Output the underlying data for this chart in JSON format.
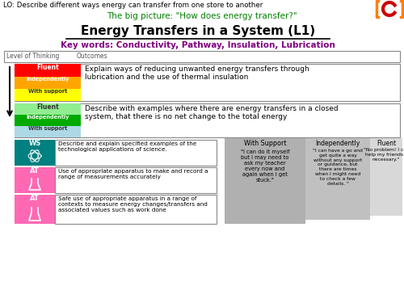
{
  "lo_text": "LO: Describe different ways energy can transfer from one store to another",
  "big_picture": "The big picture: \"How does energy transfer?\"",
  "title": "Energy Transfers in a System (L1)",
  "key_words": "Key words: Conductivity, Pathway, Insulation, Lubrication",
  "lo_color": "#000000",
  "big_picture_color": "#008000",
  "title_color": "#000000",
  "key_words_color": "#800080",
  "bg_color": "#ffffff",
  "outcome1_text": "Explain ways of reducing unwanted energy transfers through\nlubrication and the use of thermal insulation",
  "outcome2_text": "Describe with examples where there are energy transfers in a closed\nsystem, that there is no net change to the total energy",
  "ws_text": "Describe and explain specified examples of the\ntechnological applications of science.",
  "at1_text": "Use of appropriate apparatus to make and record a\nrange of measurements accurately",
  "at2_text": "Safe use of appropriate apparatus in a range of\ncontexts to measure energy changes/transfers and\nassociated values such as work done",
  "fluent_color": "#ff0000",
  "independently_color": "#ffa500",
  "with_support_color": "#ffff00",
  "fluent2_color": "#90ee90",
  "independently2_color": "#00aa00",
  "with_support2_color": "#add8e6",
  "teal_color": "#008080",
  "pink_color": "#ff69b4",
  "gray_color": "#b0b0b0",
  "silver_color": "#c0c0c0",
  "light_gray": "#d8d8d8"
}
